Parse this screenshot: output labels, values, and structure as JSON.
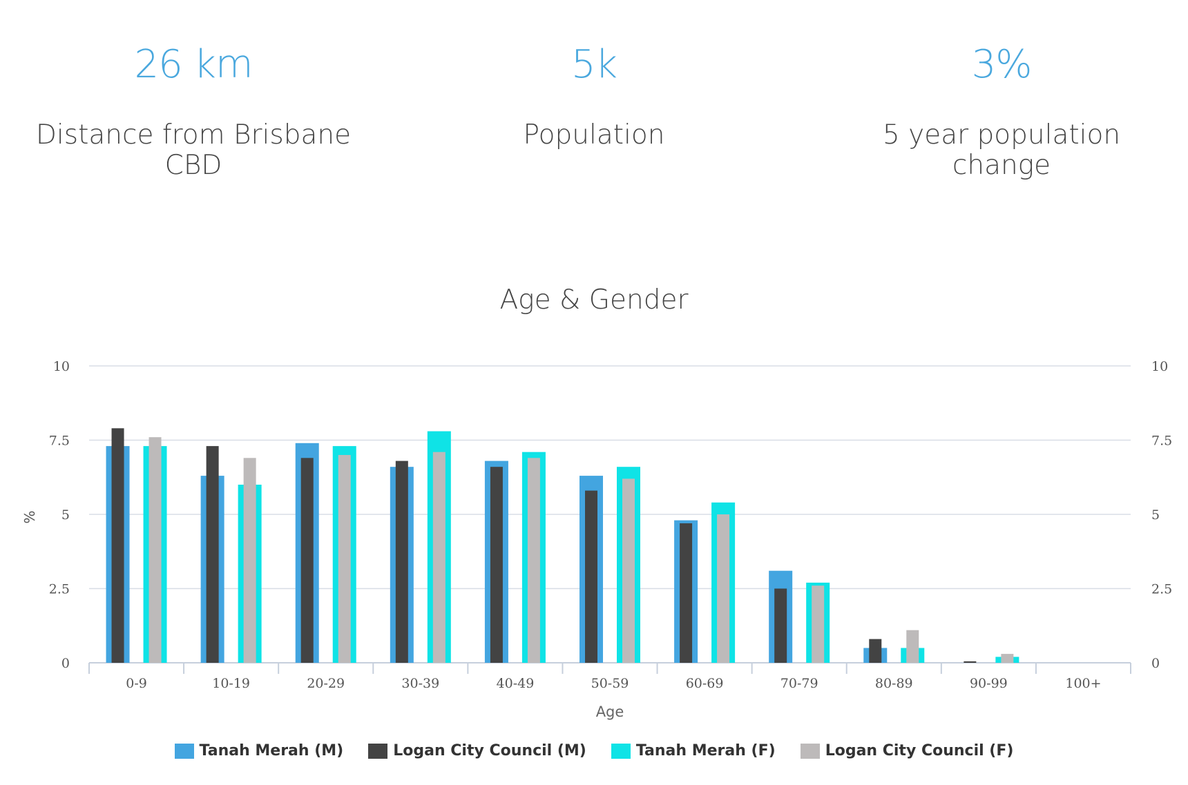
{
  "stats": [
    {
      "value": "26 km",
      "label": "Distance from Brisbane CBD"
    },
    {
      "value": "5k",
      "label": "Population"
    },
    {
      "value": "3%",
      "label": "5 year population change"
    }
  ],
  "colors": {
    "accent": "#4aa8de",
    "grid": "#d8dde6",
    "axis": "#c6cfdc"
  },
  "chart_data": {
    "type": "bar",
    "title": "Age & Gender",
    "xlabel": "Age",
    "ylabel": "%",
    "ylim": [
      0,
      10
    ],
    "yticks": [
      "0",
      "2.5",
      "5",
      "7.5",
      "10"
    ],
    "ytick_values": [
      0,
      2.5,
      5,
      7.5,
      10
    ],
    "grid": true,
    "secondary_axis_right": true,
    "legend_position": "bottom",
    "categories": [
      "0-9",
      "10-19",
      "20-29",
      "30-39",
      "40-49",
      "50-59",
      "60-69",
      "70-79",
      "80-89",
      "90-99",
      "100+"
    ],
    "series": [
      {
        "name": "Tanah Merah (M)",
        "color": "#43a5e0",
        "values": [
          7.3,
          6.3,
          7.4,
          6.6,
          6.8,
          6.3,
          4.8,
          3.1,
          0.5,
          0,
          0
        ]
      },
      {
        "name": "Logan City Council (M)",
        "color": "#434343",
        "values": [
          7.9,
          7.3,
          6.9,
          6.8,
          6.6,
          5.8,
          4.7,
          2.5,
          0.8,
          0.05,
          0
        ]
      },
      {
        "name": "Tanah Merah (F)",
        "color": "#0fe3e6",
        "values": [
          7.3,
          6.0,
          7.3,
          7.8,
          7.1,
          6.6,
          5.4,
          2.7,
          0.5,
          0.2,
          0
        ]
      },
      {
        "name": "Logan City Council (F)",
        "color": "#bdbaba",
        "values": [
          7.6,
          6.9,
          7.0,
          7.1,
          6.9,
          6.2,
          5.0,
          2.6,
          1.1,
          0.3,
          0
        ]
      }
    ]
  }
}
